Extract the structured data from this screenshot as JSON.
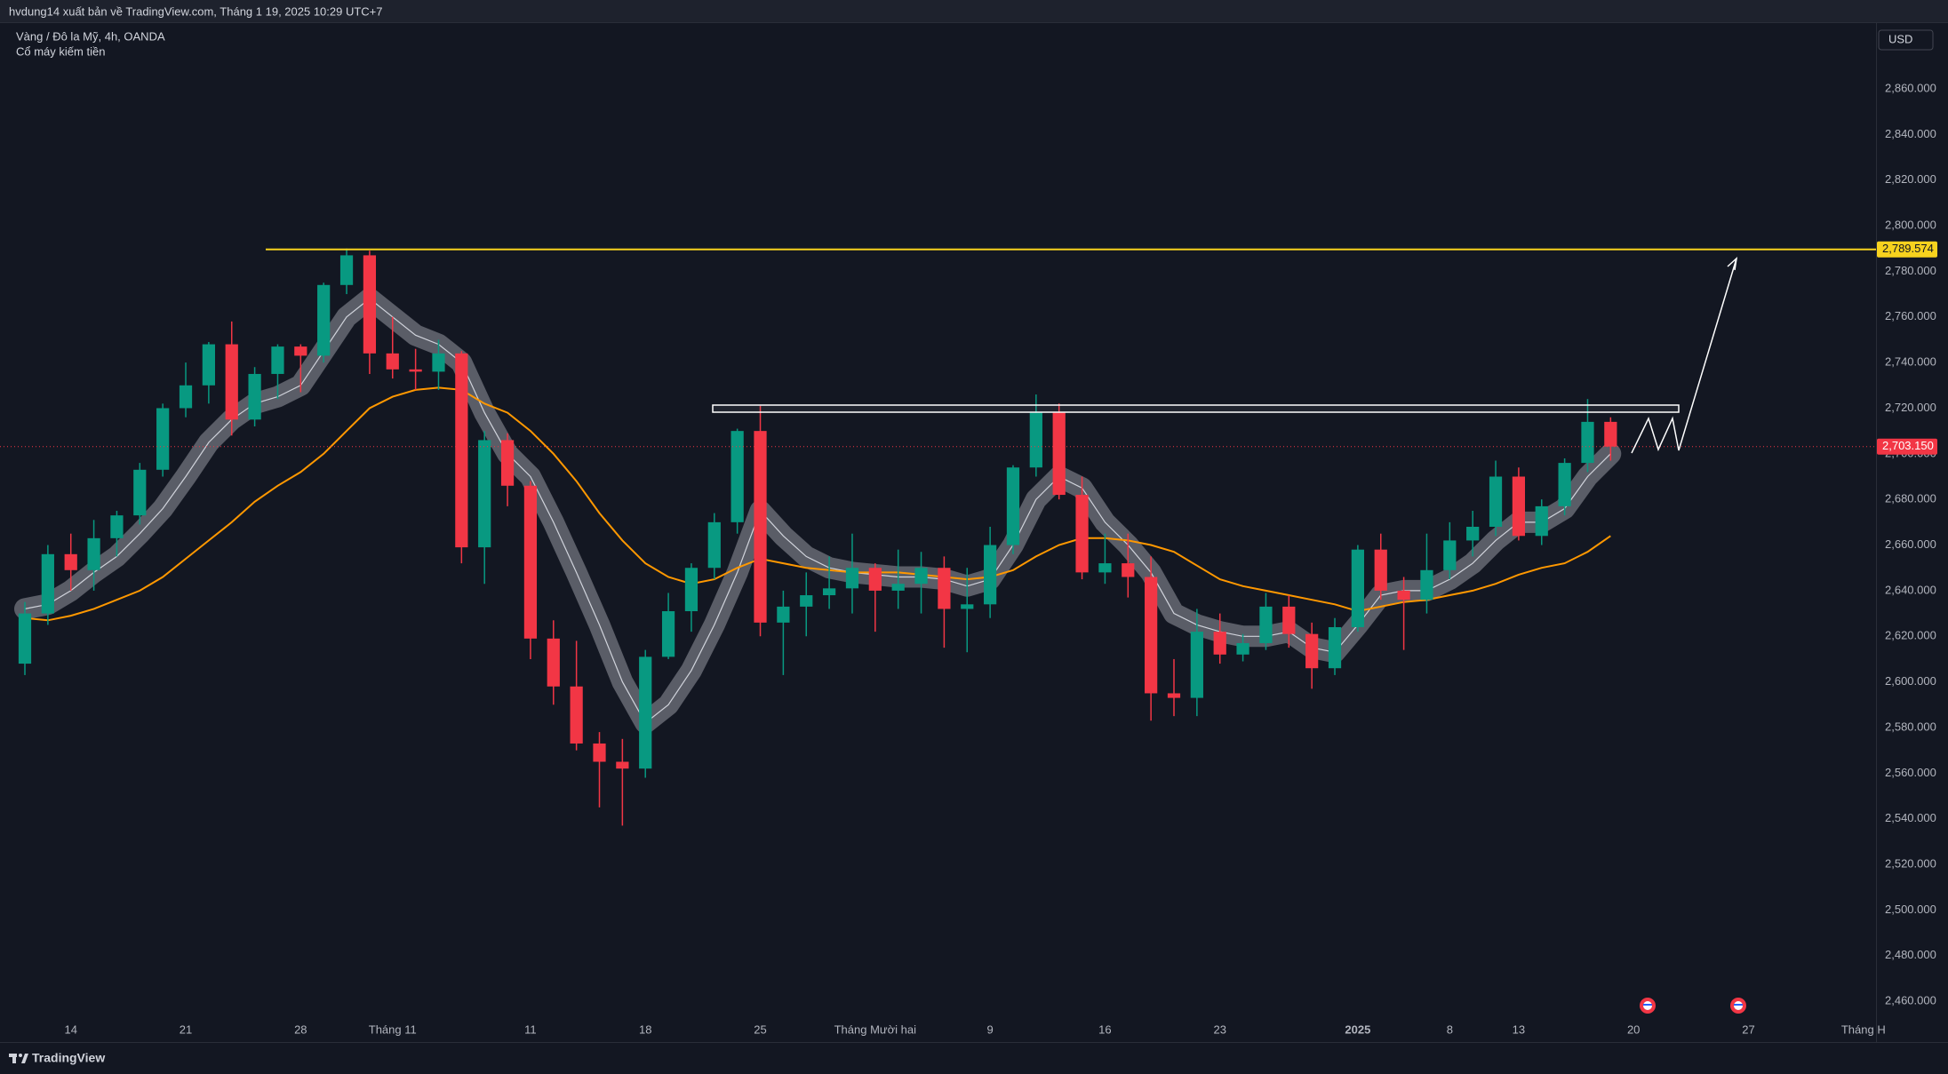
{
  "header": {
    "publisher": "hvdung14 xuất bản về TradingView.com, Tháng 1 19, 2025 10:29 UTC+7",
    "symbol": "Vàng / Đô la Mỹ, 4h, OANDA",
    "indicator": "Cổ máy kiếm tiền"
  },
  "footer": {
    "brand": "TradingView"
  },
  "chart_data": {
    "type": "candlestick",
    "currency": "USD",
    "up_color": "#089981",
    "down_color": "#f23645",
    "grid": false,
    "categories": [
      "",
      null,
      "14",
      null,
      null,
      null,
      null,
      "21",
      null,
      null,
      null,
      null,
      "28",
      null,
      null,
      null,
      "Tháng 11",
      null,
      null,
      null,
      null,
      null,
      "11",
      null,
      null,
      null,
      null,
      "18",
      null,
      null,
      null,
      null,
      "25",
      null,
      null,
      null,
      null,
      "Tháng Mười hai",
      null,
      null,
      null,
      null,
      "9",
      null,
      null,
      null,
      null,
      "16",
      null,
      null,
      null,
      null,
      "23",
      null,
      null,
      null,
      null,
      null,
      "2025",
      null,
      null,
      null,
      "8",
      null,
      null,
      "13",
      null,
      null,
      null,
      null,
      "20",
      null,
      null,
      null,
      null,
      "27",
      null,
      null,
      null,
      null,
      "Tháng H"
    ],
    "open": [
      2608,
      2630,
      2656,
      2649,
      2663,
      2673,
      2693,
      2720,
      2730,
      2748,
      2715,
      2735,
      2747,
      2743,
      2774,
      2787,
      2744,
      2737,
      2736,
      2744,
      2659,
      2706,
      2686,
      2619,
      2598,
      2573,
      2565,
      2562,
      2611,
      2631,
      2650,
      2670,
      2710,
      2626,
      2633,
      2638,
      2641,
      2650,
      2640,
      2643,
      2650,
      2632,
      2634,
      2660,
      2694,
      2718,
      2682,
      2648,
      2652,
      2646,
      2595,
      2593,
      2622,
      2612,
      2617,
      2633,
      2621,
      2606,
      2624,
      2658,
      2640,
      2636,
      2649,
      2662,
      2668,
      2690,
      2664,
      2677,
      2696,
      2714,
      null,
      null,
      null,
      null,
      null,
      null,
      null,
      null,
      null,
      null,
      null
    ],
    "high": [
      2635,
      2660,
      2665,
      2671,
      2675,
      2696,
      2722,
      2740,
      2749,
      2758,
      2738,
      2748,
      2748,
      2775,
      2790,
      2789,
      2760,
      2746,
      2750,
      2745,
      2710,
      2709,
      2688,
      2627,
      2618,
      2578,
      2575,
      2614,
      2639,
      2652,
      2674,
      2711,
      2721,
      2640,
      2648,
      2655,
      2665,
      2652,
      2658,
      2657,
      2655,
      2650,
      2668,
      2695,
      2726,
      2722,
      2690,
      2665,
      2665,
      2655,
      2610,
      2632,
      2630,
      2621,
      2639,
      2638,
      2626,
      2628,
      2660,
      2665,
      2646,
      2665,
      2670,
      2675,
      2697,
      2694,
      2680,
      2698,
      2724,
      2716,
      null,
      null,
      null,
      null,
      null,
      null,
      null,
      null,
      null,
      null,
      null
    ],
    "low": [
      2603,
      2625,
      2640,
      2640,
      2655,
      2669,
      2690,
      2716,
      2722,
      2708,
      2712,
      2724,
      2727,
      2740,
      2770,
      2735,
      2733,
      2728,
      2728,
      2652,
      2643,
      2677,
      2610,
      2590,
      2570,
      2545,
      2537,
      2558,
      2610,
      2622,
      2645,
      2665,
      2620,
      2603,
      2620,
      2632,
      2630,
      2622,
      2632,
      2630,
      2615,
      2613,
      2628,
      2656,
      2690,
      2680,
      2645,
      2643,
      2637,
      2583,
      2585,
      2585,
      2608,
      2609,
      2614,
      2615,
      2597,
      2603,
      2622,
      2636,
      2614,
      2630,
      2645,
      2655,
      2664,
      2662,
      2660,
      2673,
      2692,
      2697,
      null,
      null,
      null,
      null,
      null,
      null,
      null,
      null,
      null,
      null,
      null
    ],
    "close": [
      2630,
      2656,
      2649,
      2663,
      2673,
      2693,
      2720,
      2730,
      2748,
      2715,
      2735,
      2747,
      2743,
      2774,
      2787,
      2744,
      2737,
      2736,
      2744,
      2659,
      2706,
      2686,
      2619,
      2598,
      2573,
      2565,
      2562,
      2611,
      2631,
      2650,
      2670,
      2710,
      2626,
      2633,
      2638,
      2641,
      2650,
      2640,
      2643,
      2650,
      2632,
      2634,
      2660,
      2694,
      2718,
      2682,
      2648,
      2652,
      2646,
      2595,
      2593,
      2622,
      2612,
      2617,
      2633,
      2621,
      2606,
      2624,
      2658,
      2640,
      2636,
      2649,
      2662,
      2668,
      2690,
      2664,
      2677,
      2696,
      2714,
      2703.15,
      null,
      null,
      null,
      null,
      null,
      null,
      null,
      null,
      null,
      null,
      null
    ],
    "lines": [
      {
        "color": "#9598a1",
        "values": [
          2632,
          2634,
          2640,
          2648,
          2655,
          2665,
          2676,
          2690,
          2705,
          2715,
          2722,
          2725,
          2730,
          2745,
          2760,
          2768,
          2760,
          2752,
          2748,
          2740,
          2718,
          2700,
          2690,
          2670,
          2648,
          2625,
          2600,
          2582,
          2590,
          2605,
          2625,
          2648,
          2675,
          2664,
          2655,
          2650,
          2648,
          2647,
          2646,
          2646,
          2645,
          2642,
          2645,
          2660,
          2680,
          2690,
          2685,
          2670,
          2660,
          2648,
          2630,
          2625,
          2622,
          2620,
          2620,
          2622,
          2615,
          2613,
          2625,
          2638,
          2640,
          2640,
          2645,
          2652,
          2662,
          2670,
          2670,
          2676,
          2690,
          2700,
          null,
          null,
          null,
          null,
          null,
          null,
          null,
          null,
          null,
          null,
          null
        ]
      },
      {
        "color": "#ff9800",
        "values": [
          2628,
          2627,
          2629,
          2632,
          2636,
          2640,
          2646,
          2654,
          2662,
          2670,
          2679,
          2686,
          2692,
          2700,
          2710,
          2720,
          2725,
          2728,
          2729,
          2728,
          2722,
          2718,
          2710,
          2700,
          2688,
          2674,
          2662,
          2652,
          2646,
          2643,
          2645,
          2650,
          2654,
          2652,
          2650,
          2649,
          2648,
          2648,
          2648,
          2647,
          2646,
          2645,
          2646,
          2649,
          2655,
          2660,
          2663,
          2663,
          2662,
          2660,
          2657,
          2651,
          2645,
          2642,
          2640,
          2638,
          2636,
          2634,
          2631,
          2633,
          2635,
          2636,
          2638,
          2640,
          2643,
          2647,
          2650,
          2652,
          2657,
          2664,
          null,
          null,
          null,
          null,
          null,
          null,
          null,
          null,
          null,
          null,
          null
        ]
      }
    ],
    "hline": {
      "value": 2789.574,
      "label": "2,789.574",
      "color": "#f7d21e"
    },
    "last_price": {
      "value": 2703.15,
      "label": "2,703.150",
      "color": "#f23645"
    },
    "ylim": [
      2447.2,
      2888.8
    ],
    "yticks": [
      {
        "value": 2460,
        "label": "2,460.000"
      },
      {
        "value": 2480,
        "label": "2,480.000"
      },
      {
        "value": 2500,
        "label": "2,500.000"
      },
      {
        "value": 2520,
        "label": "2,520.000"
      },
      {
        "value": 2540,
        "label": "2,540.000"
      },
      {
        "value": 2560,
        "label": "2,560.000"
      },
      {
        "value": 2580,
        "label": "2,580.000"
      },
      {
        "value": 2600,
        "label": "2,600.000"
      },
      {
        "value": 2620,
        "label": "2,620.000"
      },
      {
        "value": 2640,
        "label": "2,640.000"
      },
      {
        "value": 2660,
        "label": "2,660.000"
      },
      {
        "value": 2680,
        "label": "2,680.000"
      },
      {
        "value": 2700,
        "label": "2,700.000"
      },
      {
        "value": 2720,
        "label": "2,720.000"
      },
      {
        "value": 2740,
        "label": "2,740.000"
      },
      {
        "value": 2760,
        "label": "2,760.000"
      },
      {
        "value": 2780,
        "label": "2,780.000"
      },
      {
        "value": 2800,
        "label": "2,800.000"
      },
      {
        "value": 2820,
        "label": "2,820.000"
      },
      {
        "value": 2840,
        "label": "2,840.000"
      },
      {
        "value": 2860,
        "label": "2,860.000"
      }
    ]
  }
}
